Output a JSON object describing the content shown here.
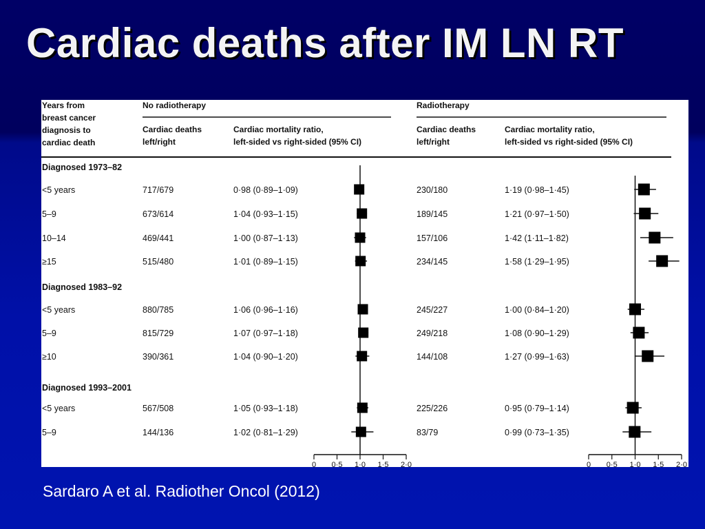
{
  "slide": {
    "title": "Cardiac deaths after IM LN RT",
    "citation": "Sardaro A et al. Radiother Oncol (2012)"
  },
  "table": {
    "row_header_lines": [
      "Years from",
      "breast cancer",
      "diagnosis to",
      "cardiac death"
    ],
    "panels": [
      {
        "title": "No radiotherapy",
        "col1": [
          "Cardiac deaths",
          "left/right"
        ],
        "col2": [
          "Cardiac mortality ratio,",
          "left-sided vs right-sided (95% CI)"
        ]
      },
      {
        "title": "Radiotherapy",
        "col1": [
          "Cardiac deaths",
          "left/right"
        ],
        "col2": [
          "Cardiac mortality ratio,",
          "left-sided vs right-sided (95% CI)"
        ]
      }
    ],
    "axis_ticks": [
      "0",
      "0·5",
      "1·0",
      "1·5",
      "2·0"
    ]
  },
  "chart_data": {
    "type": "forest",
    "xlim": [
      0,
      2.0
    ],
    "reference_line": 1.0,
    "panels": [
      "No radiotherapy",
      "Radiotherapy"
    ],
    "groups": [
      {
        "label": "Diagnosed 1973–82",
        "rows": [
          {
            "label": "<5 years",
            "no_rt": {
              "deaths": "717/679",
              "text": "0·98 (0·89–1·09)",
              "est": 0.98,
              "lo": 0.89,
              "hi": 1.09
            },
            "rt": {
              "deaths": "230/180",
              "text": "1·19 (0·98–1·45)",
              "est": 1.19,
              "lo": 0.98,
              "hi": 1.45
            }
          },
          {
            "label": "5–9",
            "no_rt": {
              "deaths": "673/614",
              "text": "1·04 (0·93–1·15)",
              "est": 1.04,
              "lo": 0.93,
              "hi": 1.15
            },
            "rt": {
              "deaths": "189/145",
              "text": "1·21 (0·97–1·50)",
              "est": 1.21,
              "lo": 0.97,
              "hi": 1.5
            }
          },
          {
            "label": "10–14",
            "no_rt": {
              "deaths": "469/441",
              "text": "1·00 (0·87–1·13)",
              "est": 1.0,
              "lo": 0.87,
              "hi": 1.13
            },
            "rt": {
              "deaths": "157/106",
              "text": "1·42 (1·11–1·82)",
              "est": 1.42,
              "lo": 1.11,
              "hi": 1.82
            }
          },
          {
            "label": "≥15",
            "no_rt": {
              "deaths": "515/480",
              "text": "1·01 (0·89–1·15)",
              "est": 1.01,
              "lo": 0.89,
              "hi": 1.15
            },
            "rt": {
              "deaths": "234/145",
              "text": "1·58 (1·29–1·95)",
              "est": 1.58,
              "lo": 1.29,
              "hi": 1.95
            }
          }
        ]
      },
      {
        "label": "Diagnosed 1983–92",
        "rows": [
          {
            "label": "<5 years",
            "no_rt": {
              "deaths": "880/785",
              "text": "1·06 (0·96–1·16)",
              "est": 1.06,
              "lo": 0.96,
              "hi": 1.16
            },
            "rt": {
              "deaths": "245/227",
              "text": "1·00 (0·84–1·20)",
              "est": 1.0,
              "lo": 0.84,
              "hi": 1.2
            }
          },
          {
            "label": "5–9",
            "no_rt": {
              "deaths": "815/729",
              "text": "1·07 (0·97–1·18)",
              "est": 1.07,
              "lo": 0.97,
              "hi": 1.18
            },
            "rt": {
              "deaths": "249/218",
              "text": "1·08 (0·90–1·29)",
              "est": 1.08,
              "lo": 0.9,
              "hi": 1.29
            }
          },
          {
            "label": "≥10",
            "no_rt": {
              "deaths": "390/361",
              "text": "1·04 (0·90–1·20)",
              "est": 1.04,
              "lo": 0.9,
              "hi": 1.2
            },
            "rt": {
              "deaths": "144/108",
              "text": "1·27 (0·99–1·63)",
              "est": 1.27,
              "lo": 0.99,
              "hi": 1.63
            }
          }
        ]
      },
      {
        "label": "Diagnosed 1993–2001",
        "rows": [
          {
            "label": "<5 years",
            "no_rt": {
              "deaths": "567/508",
              "text": "1·05 (0·93–1·18)",
              "est": 1.05,
              "lo": 0.93,
              "hi": 1.18
            },
            "rt": {
              "deaths": "225/226",
              "text": "0·95 (0·79–1·14)",
              "est": 0.95,
              "lo": 0.79,
              "hi": 1.14
            }
          },
          {
            "label": "5–9",
            "no_rt": {
              "deaths": "144/136",
              "text": "1·02 (0·81–1·29)",
              "est": 1.02,
              "lo": 0.81,
              "hi": 1.29
            },
            "rt": {
              "deaths": "83/79",
              "text": "0·99 (0·73–1·35)",
              "est": 0.99,
              "lo": 0.73,
              "hi": 1.35
            }
          }
        ]
      }
    ]
  }
}
